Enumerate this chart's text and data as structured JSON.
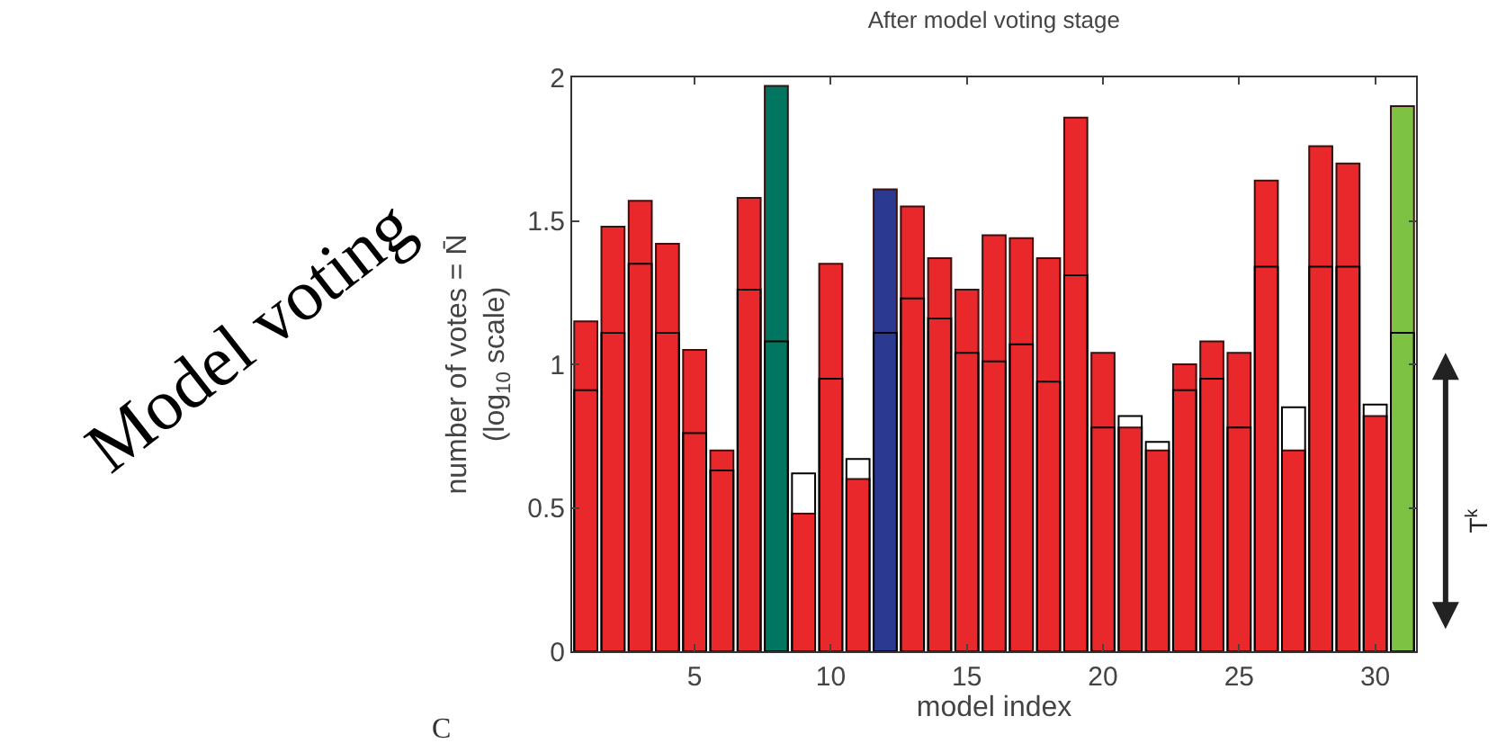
{
  "chart_data": {
    "type": "bar",
    "title": "After model voting stage",
    "xlabel": "model index",
    "ylabel": "number of votes = N̄\n(log$_{10}$ scale)",
    "x": [
      1,
      2,
      3,
      4,
      5,
      6,
      7,
      8,
      9,
      10,
      11,
      12,
      13,
      14,
      15,
      16,
      17,
      18,
      19,
      20,
      21,
      22,
      23,
      24,
      25,
      26,
      27,
      28,
      29,
      30,
      31
    ],
    "series": [
      {
        "colors": [
          "#e8282b",
          "#e8282b",
          "#e8282b",
          "#e8282b",
          "#e8282b",
          "#e8282b",
          "#e8282b",
          "#00755f",
          "#e8282b",
          "#e8282b",
          "#e8282b",
          "#2b3990",
          "#e8282b",
          "#e8282b",
          "#e8282b",
          "#e8282b",
          "#e8282b",
          "#e8282b",
          "#e8282b",
          "#e8282b",
          "#e8282b",
          "#e8282b",
          "#e8282b",
          "#e8282b",
          "#e8282b",
          "#e8282b",
          "#e8282b",
          "#e8282b",
          "#e8282b",
          "#e8282b",
          "#7dc242"
        ],
        "values": [
          1.15,
          1.48,
          1.57,
          1.42,
          1.05,
          0.7,
          1.58,
          1.97,
          0.48,
          1.35,
          0.6,
          1.61,
          1.55,
          1.37,
          1.26,
          1.45,
          1.44,
          1.37,
          1.86,
          1.04,
          0.78,
          0.7,
          1.0,
          1.08,
          1.04,
          1.64,
          0.7,
          1.76,
          1.7,
          0.82,
          1.9
        ]
      },
      {
        "color": "#000000",
        "values": [
          0.91,
          1.11,
          1.35,
          1.11,
          0.76,
          0.63,
          1.26,
          1.08,
          0.62,
          0.95,
          0.67,
          1.11,
          1.23,
          1.16,
          1.04,
          1.01,
          1.07,
          0.94,
          1.31,
          0.78,
          0.82,
          0.73,
          0.91,
          0.95,
          0.78,
          1.34,
          0.85,
          1.34,
          1.34,
          0.86,
          1.11
        ]
      }
    ],
    "xlim": [
      0.5,
      31.5
    ],
    "xticks": [
      5,
      10,
      15,
      20,
      25,
      30
    ],
    "ylim": [
      0,
      2
    ],
    "yticks": [
      0,
      0.5,
      1,
      1.5,
      2
    ],
    "annotations": [
      "Model voting",
      "C",
      "T$^{k}$"
    ]
  }
}
